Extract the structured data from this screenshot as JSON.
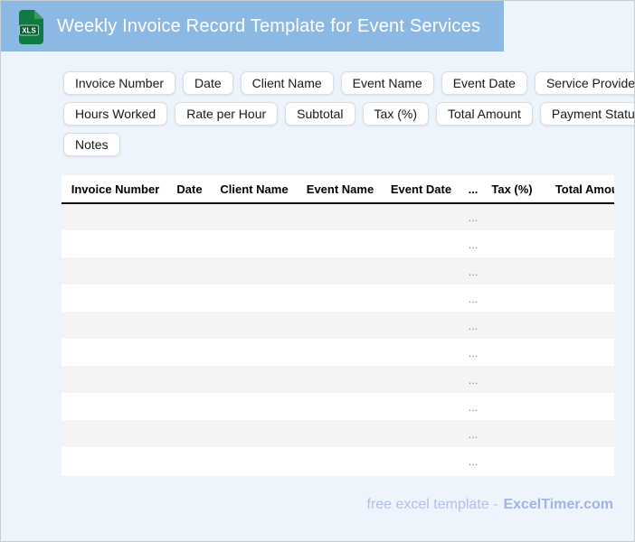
{
  "header": {
    "title": "Weekly Invoice Record Template for Event Services",
    "icon_label": "XLS",
    "bar_color": "#8cb8e4",
    "icon_color": "#0f7b42"
  },
  "chips": {
    "rows": [
      [
        "Invoice Number",
        "Date",
        "Client Name",
        "Event Name",
        "Event Date",
        "Service Provided"
      ],
      [
        "Hours Worked",
        "Rate per Hour",
        "Subtotal",
        "Tax (%)",
        "Total Amount",
        "Payment Status"
      ],
      [
        "Notes"
      ]
    ]
  },
  "table": {
    "columns": [
      "Invoice Number",
      "Date",
      "Client Name",
      "Event Name",
      "Event Date",
      "...",
      "Tax (%)",
      "Total Amount"
    ],
    "rows": [
      [
        "",
        "",
        "",
        "",
        "",
        "...",
        "",
        ""
      ],
      [
        "",
        "",
        "",
        "",
        "",
        "...",
        "",
        ""
      ],
      [
        "",
        "",
        "",
        "",
        "",
        "...",
        "",
        ""
      ],
      [
        "",
        "",
        "",
        "",
        "",
        "...",
        "",
        ""
      ],
      [
        "",
        "",
        "",
        "",
        "",
        "...",
        "",
        ""
      ],
      [
        "",
        "",
        "",
        "",
        "",
        "...",
        "",
        ""
      ],
      [
        "",
        "",
        "",
        "",
        "",
        "...",
        "",
        ""
      ],
      [
        "",
        "",
        "",
        "",
        "",
        "...",
        "",
        ""
      ],
      [
        "",
        "",
        "",
        "",
        "",
        "...",
        "",
        ""
      ],
      [
        "",
        "",
        "",
        "",
        "",
        "...",
        "",
        ""
      ]
    ]
  },
  "footer": {
    "text": "free excel template -",
    "brand": "ExcelTimer.com"
  },
  "colors": {
    "page_bg": "#edf4fc",
    "row_alt": "#f4f4f5",
    "footer_text": "#b2beeb",
    "brand_text": "#a3b2e7"
  }
}
